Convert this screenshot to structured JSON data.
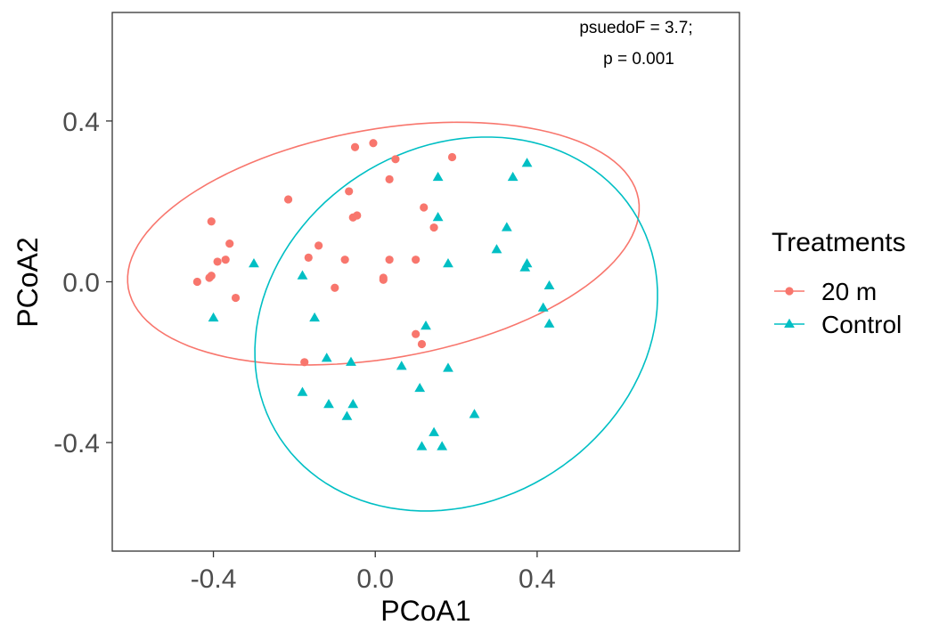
{
  "chart_data": {
    "type": "scatter",
    "title": "",
    "xlabel": "PCoA1",
    "ylabel": "PCoA2",
    "xlim": [
      -0.65,
      0.9
    ],
    "ylim": [
      -0.67,
      0.67
    ],
    "x_ticks": [
      -0.4,
      0.0,
      0.4
    ],
    "x_tick_labels": [
      "-0.4",
      "0.0",
      "0.4"
    ],
    "y_ticks": [
      -0.4,
      0.0,
      0.4
    ],
    "y_tick_labels": [
      "-0.4",
      "0.0",
      "0.4"
    ],
    "grid": false,
    "legend_position": "right",
    "legend_title": "Treatments",
    "annotations": [
      "psuedoF = 3.7;",
      "p = 0.001"
    ],
    "series": [
      {
        "name": "20 m",
        "color": "#F8766D",
        "marker": "circle",
        "points": [
          [
            -0.44,
            0.0
          ],
          [
            -0.41,
            0.01
          ],
          [
            -0.405,
            0.015
          ],
          [
            -0.405,
            0.15
          ],
          [
            -0.39,
            0.05
          ],
          [
            -0.37,
            0.055
          ],
          [
            -0.36,
            0.095
          ],
          [
            -0.345,
            -0.04
          ],
          [
            -0.215,
            0.205
          ],
          [
            -0.175,
            -0.2
          ],
          [
            -0.165,
            0.06
          ],
          [
            -0.14,
            0.09
          ],
          [
            -0.1,
            -0.015
          ],
          [
            -0.075,
            0.055
          ],
          [
            -0.065,
            0.225
          ],
          [
            -0.055,
            0.16
          ],
          [
            -0.045,
            0.165
          ],
          [
            -0.05,
            0.335
          ],
          [
            -0.005,
            0.345
          ],
          [
            0.02,
            0.005
          ],
          [
            0.02,
            0.01
          ],
          [
            0.035,
            0.055
          ],
          [
            0.035,
            0.255
          ],
          [
            0.05,
            0.305
          ],
          [
            0.1,
            0.055
          ],
          [
            0.1,
            -0.13
          ],
          [
            0.115,
            -0.155
          ],
          [
            0.12,
            0.185
          ],
          [
            0.145,
            0.135
          ],
          [
            0.19,
            0.31
          ]
        ]
      },
      {
        "name": "Control",
        "color": "#00BFC4",
        "marker": "triangle",
        "points": [
          [
            -0.4,
            -0.09
          ],
          [
            -0.3,
            0.045
          ],
          [
            -0.18,
            0.015
          ],
          [
            -0.18,
            -0.275
          ],
          [
            -0.15,
            -0.09
          ],
          [
            -0.12,
            -0.19
          ],
          [
            -0.115,
            -0.305
          ],
          [
            -0.07,
            -0.335
          ],
          [
            -0.06,
            -0.2
          ],
          [
            -0.055,
            -0.305
          ],
          [
            0.065,
            -0.21
          ],
          [
            0.11,
            -0.265
          ],
          [
            0.115,
            -0.41
          ],
          [
            0.125,
            -0.11
          ],
          [
            0.145,
            -0.375
          ],
          [
            0.155,
            0.26
          ],
          [
            0.155,
            0.16
          ],
          [
            0.165,
            -0.41
          ],
          [
            0.18,
            0.045
          ],
          [
            0.18,
            -0.215
          ],
          [
            0.245,
            -0.33
          ],
          [
            0.3,
            0.08
          ],
          [
            0.325,
            0.135
          ],
          [
            0.34,
            0.26
          ],
          [
            0.37,
            0.035
          ],
          [
            0.375,
            0.045
          ],
          [
            0.375,
            0.295
          ],
          [
            0.415,
            -0.065
          ],
          [
            0.43,
            -0.01
          ],
          [
            0.43,
            -0.105
          ]
        ]
      }
    ],
    "ellipses": [
      {
        "series": "20 m",
        "color": "#F8766D",
        "cx": 0.02,
        "cy": 0.095,
        "rx": 0.64,
        "ry": 0.285,
        "rotation_deg": 10
      },
      {
        "series": "Control",
        "color": "#00BFC4",
        "cx": 0.2,
        "cy": -0.105,
        "rx": 0.52,
        "ry": 0.44,
        "rotation_deg": 33
      }
    ]
  }
}
